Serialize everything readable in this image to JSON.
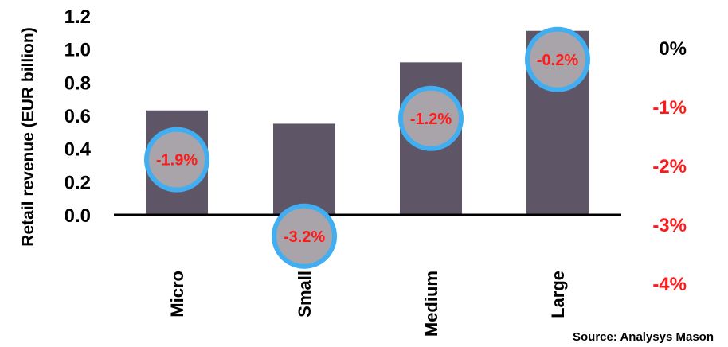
{
  "chart_data": {
    "type": "bar",
    "categories": [
      "Micro",
      "Small",
      "Medium",
      "Large"
    ],
    "values": [
      0.63,
      0.55,
      0.92,
      1.11
    ],
    "ylabel": "Retail revenue (EUR billion)",
    "ylim": [
      0,
      1.2
    ],
    "yticks": [
      "0.0",
      "0.2",
      "0.4",
      "0.6",
      "0.8",
      "1.0",
      "1.2"
    ],
    "secondary_axis": {
      "ticks": [
        "0%",
        "-1%",
        "-2%",
        "-3%",
        "-4%"
      ],
      "tick_values": [
        0,
        -1,
        -2,
        -3,
        -4
      ],
      "markers": {
        "values": [
          -1.9,
          -3.2,
          -1.2,
          -0.2
        ],
        "labels": [
          "-1.9%",
          "-3.2%",
          "-1.2%",
          "-0.2%"
        ]
      }
    },
    "grid": false,
    "source": "Source: Analysys Mason"
  },
  "colors": {
    "bar": "#5e5566",
    "marker_fill": "#a9a4aa",
    "marker_ring": "#40aef0",
    "negative_text": "#ff1a1a",
    "axis": "#000000"
  }
}
